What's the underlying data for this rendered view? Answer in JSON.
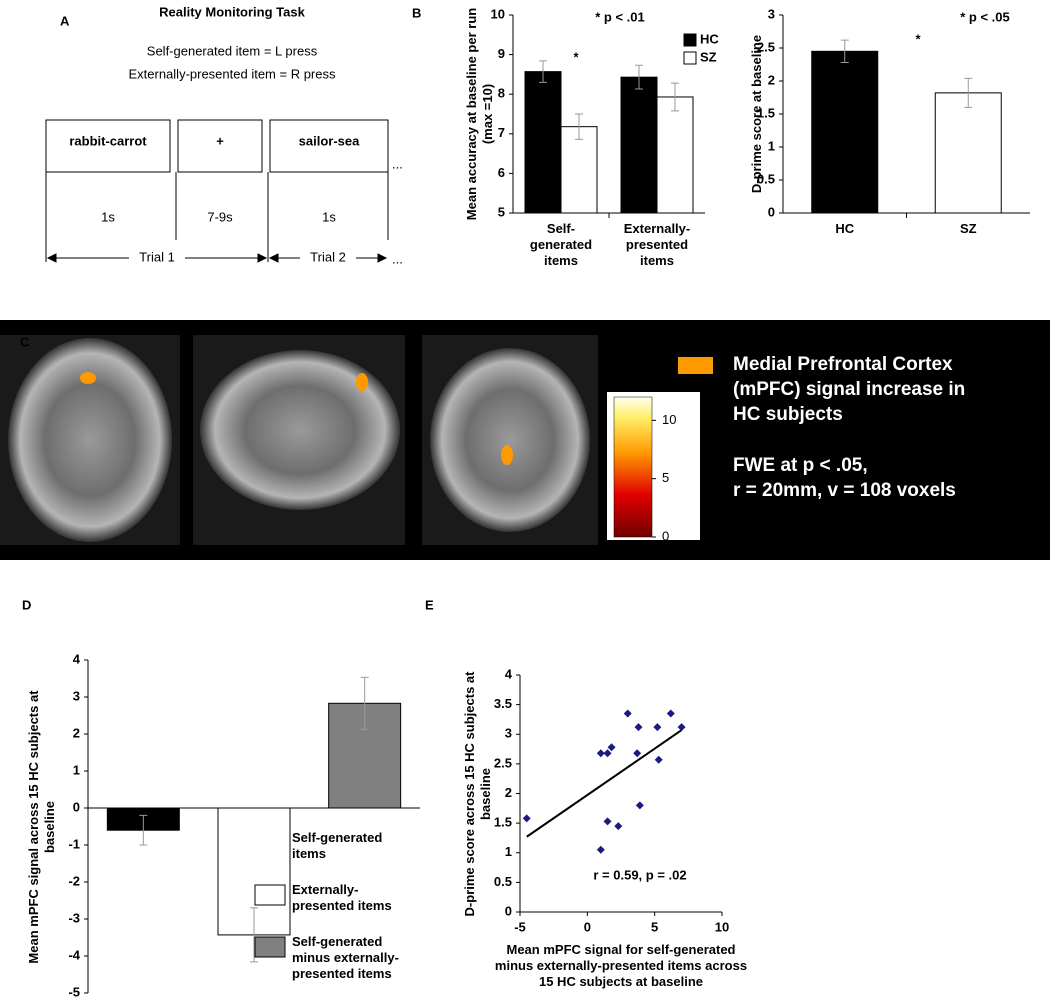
{
  "panel_labels": [
    "A",
    "B",
    "C",
    "D",
    "E"
  ],
  "task": {
    "title": "Reality Monitoring Task",
    "rules": [
      "Self-generated item = L press",
      "Externally-presented item = R press"
    ],
    "screens": [
      "rabbit-carrot",
      "+",
      "sailor-sea"
    ],
    "durations": [
      "1s",
      "7-9s",
      "1s"
    ],
    "trials": [
      "Trial 1",
      "Trial 2"
    ],
    "ellipsis": "..."
  },
  "imaging": {
    "description": "Medial Prefrontal Cortex\n(mPFC) signal increase in\nHC subjects",
    "stats": "FWE at p < .05,\nr = 20mm, v = 108 voxels",
    "color": "#ff9900",
    "colorbar": {
      "range": [
        0,
        12
      ],
      "ticks": [
        0,
        5,
        10
      ]
    }
  },
  "chart_data": [
    {
      "type": "bar",
      "ylabel": "Mean accuracy at baseline per run\n(max =10)",
      "annotations": [
        "* p < .01",
        "*"
      ],
      "categories": [
        "Self-\ngenerated\nitems",
        "Externally-\npresented\nitems"
      ],
      "series": [
        {
          "name": "HC",
          "color": "#000000",
          "values": [
            8.57,
            8.43
          ],
          "errors": [
            0.27,
            0.3
          ]
        },
        {
          "name": "SZ",
          "color": "#ffffff",
          "values": [
            7.18,
            7.93
          ],
          "errors": [
            0.32,
            0.35
          ]
        }
      ],
      "ylim": [
        5,
        10
      ],
      "yticks": [
        5,
        6,
        7,
        8,
        9,
        10
      ]
    },
    {
      "type": "bar",
      "ylabel": "D-prime score at baseline",
      "annotations": [
        "* p < .05",
        "*"
      ],
      "categories": [
        "HC",
        "SZ"
      ],
      "values": [
        2.45,
        1.82
      ],
      "errors": [
        0.17,
        0.22
      ],
      "colors": [
        "#000000",
        "#ffffff"
      ],
      "ylim": [
        0,
        3
      ],
      "yticks": [
        0,
        0.5,
        1,
        1.5,
        2,
        2.5,
        3
      ]
    },
    {
      "type": "bar",
      "ylabel": "Mean mPFC signal across 15 HC subjects at\nbaseline",
      "series": [
        {
          "name": "Self-generated\nitems",
          "color": "#000000",
          "values": [
            -0.6
          ],
          "errors": [
            0.4
          ]
        },
        {
          "name": "Externally-\npresented items",
          "color": "#ffffff",
          "values": [
            -3.43
          ],
          "errors": [
            0.73
          ]
        },
        {
          "name": "Self-generated\nminus externally-\npresented items",
          "color": "#808080",
          "values": [
            2.83
          ],
          "errors": [
            0.7
          ]
        }
      ],
      "ylim": [
        -5,
        4
      ],
      "yticks": [
        -5,
        -4,
        -3,
        -2,
        -1,
        0,
        1,
        2,
        3,
        4
      ]
    },
    {
      "type": "scatter",
      "ylabel": "D-prime score across 15 HC subjects at\nbaseline",
      "xlabel": "Mean mPFC signal for self-generated\nminus externally-presented items across\n15 HC subjects at baseline",
      "annotations": [
        "r = 0.59, p = .02"
      ],
      "color": "#1a1a80",
      "x": [
        -4.5,
        1.0,
        1.0,
        1.5,
        1.8,
        1.5,
        2.3,
        3.0,
        3.8,
        3.7,
        3.9,
        5.2,
        5.3,
        6.2,
        7.0
      ],
      "y": [
        1.58,
        1.05,
        2.68,
        2.68,
        2.78,
        1.53,
        1.45,
        3.35,
        3.12,
        2.68,
        1.8,
        3.12,
        2.57,
        3.35,
        3.12
      ],
      "trendline": {
        "x": [
          -4.5,
          7.0
        ],
        "y": [
          1.27,
          3.07
        ]
      },
      "xlim": [
        -5,
        10
      ],
      "xticks": [
        -5,
        0,
        5,
        10
      ],
      "ylim": [
        0,
        4
      ],
      "yticks": [
        0,
        0.5,
        1,
        1.5,
        2,
        2.5,
        3,
        3.5,
        4
      ]
    }
  ]
}
